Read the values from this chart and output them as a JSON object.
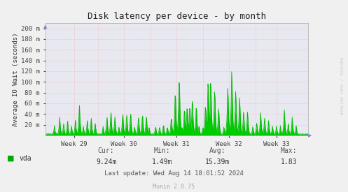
{
  "title": "Disk latency per device - by month",
  "ylabel": "Average IO Wait (seconds)",
  "yticks": [
    20,
    40,
    60,
    80,
    100,
    120,
    140,
    160,
    180,
    200
  ],
  "ytick_labels": [
    "20 m",
    "40 m",
    "60 m",
    "80 m",
    "100 m",
    "120 m",
    "140 m",
    "160 m",
    "180 m",
    "200 m"
  ],
  "ylim": [
    0,
    210
  ],
  "xtick_labels": [
    "Week 29",
    "Week 30",
    "Week 31",
    "Week 32",
    "Week 33"
  ],
  "line_color": "#00bb00",
  "fill_color": "#00cc00",
  "bg_color": "#f0f0f0",
  "plot_bg_color": "#e8e8f0",
  "grid_color": "#ff9999",
  "legend_label": "vda",
  "legend_color": "#00aa00",
  "cur_label": "Cur:",
  "cur_val": "9.24m",
  "min_label": "Min:",
  "min_val": "1.49m",
  "avg_label": "Avg:",
  "avg_val": "15.39m",
  "max_label": "Max:",
  "max_val": "1.83",
  "last_update": "Last update: Wed Aug 14 18:01:52 2024",
  "munin_version": "Munin 2.0.75",
  "watermark": "RRDTOOL / TOBI OETIKER"
}
